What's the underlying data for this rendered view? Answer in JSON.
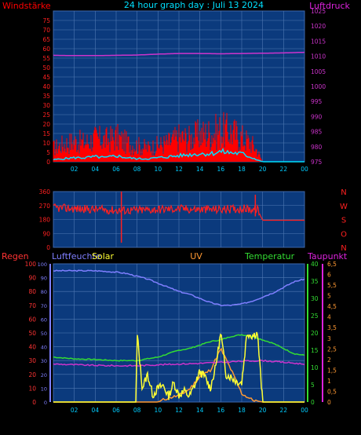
{
  "title": "24 hour graph day : Juli 13 2024",
  "colors": {
    "background": "#000000",
    "plot_bg": "#0b3a7d",
    "grid": "#4f78b3",
    "wind": "#ff0000",
    "gust": "#ff2020",
    "wind_avg": "#00e0ff",
    "pressure": "#cc33cc",
    "direction": "#ff2020",
    "rain": "#ff3333",
    "humidity": "#7f7fff",
    "solar": "#ffff33",
    "uv": "#ff9933",
    "temperature": "#33dd33",
    "dewpoint": "#cc33cc",
    "tick_x": "#00ccff"
  },
  "chart_data": [
    {
      "type": "line",
      "name": "wind-pressure",
      "left_label": "Windstärke",
      "right_label": "Luftdruck",
      "x_ticks": [
        "02",
        "04",
        "06",
        "08",
        "10",
        "12",
        "14",
        "16",
        "18",
        "20",
        "22",
        "00"
      ],
      "left_ticks": [
        "0",
        "5",
        "10",
        "15",
        "20",
        "25",
        "30",
        "35",
        "40",
        "45",
        "50",
        "55",
        "60",
        "65",
        "70",
        "75"
      ],
      "right_ticks": [
        "975",
        "980",
        "985",
        "990",
        "995",
        "1000",
        "1005",
        "1010",
        "1015",
        "1020",
        "1025"
      ],
      "left_range": [
        0,
        75
      ],
      "right_range": [
        975,
        1025
      ],
      "x_range": [
        0,
        24
      ],
      "pressure": {
        "x": [
          0,
          2,
          4,
          6,
          8,
          10,
          12,
          14,
          16,
          18,
          20,
          22,
          24
        ],
        "y": [
          1010.3,
          1010.2,
          1010.2,
          1010.3,
          1010.4,
          1010.7,
          1010.9,
          1010.9,
          1010.8,
          1010.9,
          1011.0,
          1011.1,
          1011.3
        ]
      },
      "gust_envelope": {
        "x": [
          0,
          1,
          2,
          3,
          4,
          5,
          6,
          7,
          8,
          9,
          10,
          11,
          12,
          13,
          14,
          15,
          16,
          17,
          18,
          19,
          19.5,
          20,
          24
        ],
        "y": [
          10,
          13,
          15,
          14,
          17,
          16,
          18,
          14,
          12,
          10,
          12,
          14,
          18,
          17,
          20,
          21,
          23,
          22,
          18,
          13,
          8,
          0,
          0
        ]
      },
      "wind_avg": {
        "x": [
          0,
          1,
          2,
          3,
          4,
          5,
          6,
          7,
          8,
          9,
          10,
          11,
          12,
          13,
          14,
          15,
          16,
          17,
          18,
          19,
          19.5,
          20,
          24
        ],
        "y": [
          1,
          1.5,
          2,
          2,
          2.5,
          2,
          3,
          2,
          1.5,
          1.5,
          2,
          2.5,
          3,
          3.5,
          4,
          4,
          5,
          4.5,
          4,
          2,
          1,
          0,
          0
        ]
      }
    },
    {
      "type": "scatter",
      "name": "wind-direction",
      "left_ticks": [
        "0",
        "90",
        "180",
        "270",
        "360"
      ],
      "right_labels": [
        "N",
        "W",
        "S",
        "O",
        "N"
      ],
      "y_range": [
        0,
        360
      ],
      "x_range": [
        0,
        24
      ],
      "x": [
        0,
        2,
        4,
        6,
        8,
        10,
        12,
        14,
        16,
        18,
        19.5,
        20,
        24
      ],
      "y": [
        255,
        250,
        245,
        240,
        240,
        245,
        250,
        245,
        245,
        250,
        245,
        175,
        175
      ]
    },
    {
      "type": "line",
      "name": "rain-humidity-solar-uv-temp-dew",
      "series_labels": [
        "Regen",
        "Luftfeuchte",
        "Solar",
        "UV",
        "Temperatur",
        "Taupunkt"
      ],
      "left_ticks": [
        "0",
        "10",
        "20",
        "30",
        "40",
        "50",
        "60",
        "70",
        "80",
        "90",
        "100"
      ],
      "humidity_ticks": [
        "0",
        "10",
        "20",
        "30",
        "40",
        "50",
        "60",
        "70",
        "80",
        "90",
        "100"
      ],
      "temp_ticks": [
        "0",
        "5",
        "10",
        "15",
        "20",
        "25",
        "30",
        "35",
        "40"
      ],
      "dew_ticks": [
        "0",
        "0,5",
        "1",
        "1,5",
        "2",
        "2,5",
        "3",
        "3,5",
        "4",
        "4,5",
        "5",
        "5,5",
        "6",
        "6,5"
      ],
      "x_ticks": [
        "02",
        "04",
        "06",
        "08",
        "10",
        "12",
        "14",
        "16",
        "18",
        "20",
        "22",
        "00"
      ],
      "x_range": [
        0,
        24
      ],
      "humidity": {
        "x": [
          0,
          2,
          4,
          6,
          7,
          8,
          9,
          10,
          11,
          12,
          13,
          14,
          15,
          16,
          17,
          18,
          19,
          20,
          21,
          22,
          23,
          24
        ],
        "y": [
          95,
          95,
          95,
          94,
          93,
          91,
          89,
          86,
          83,
          80,
          78,
          75,
          72,
          70,
          70,
          71,
          73,
          76,
          79,
          83,
          87,
          89
        ]
      },
      "temperature": {
        "x": [
          0,
          2,
          4,
          6,
          8,
          9,
          10,
          11,
          12,
          13,
          14,
          15,
          16,
          17,
          18,
          19,
          20,
          21,
          22,
          23,
          24
        ],
        "y": [
          13,
          12.5,
          12.3,
          12,
          12,
          12.5,
          13,
          14,
          15,
          15.5,
          16.5,
          17.5,
          18,
          19,
          19.5,
          19,
          18,
          17,
          15.5,
          14,
          13.5
        ]
      },
      "dewpoint": {
        "x": [
          0,
          2,
          4,
          6,
          8,
          10,
          12,
          14,
          16,
          18,
          20,
          22,
          24
        ],
        "y": [
          11,
          10.8,
          10.6,
          10.5,
          10.5,
          10.8,
          11,
          11.2,
          11.5,
          11.8,
          12,
          11.5,
          11
        ]
      },
      "solar": {
        "x": [
          0,
          7.9,
          8.0,
          8.5,
          9.0,
          9.5,
          10,
          10.5,
          11,
          11.5,
          12,
          12.5,
          13,
          13.5,
          14,
          14.5,
          15,
          15.5,
          16,
          16.5,
          17,
          17.5,
          18,
          18.5,
          19,
          19.5,
          20,
          24
        ],
        "y": [
          0,
          0,
          50,
          10,
          20,
          5,
          10,
          12,
          4,
          14,
          5,
          8,
          4,
          12,
          22,
          18,
          10,
          25,
          50,
          20,
          18,
          15,
          14,
          50,
          48,
          50,
          0,
          0
        ]
      },
      "uv": {
        "x": [
          0,
          10,
          11,
          12,
          13,
          14,
          15,
          16,
          17,
          18,
          19,
          20,
          24
        ],
        "y": [
          0,
          0,
          0.2,
          0.3,
          0.6,
          1.2,
          1.5,
          2.5,
          1.5,
          0.4,
          0.1,
          0,
          0
        ]
      }
    }
  ]
}
